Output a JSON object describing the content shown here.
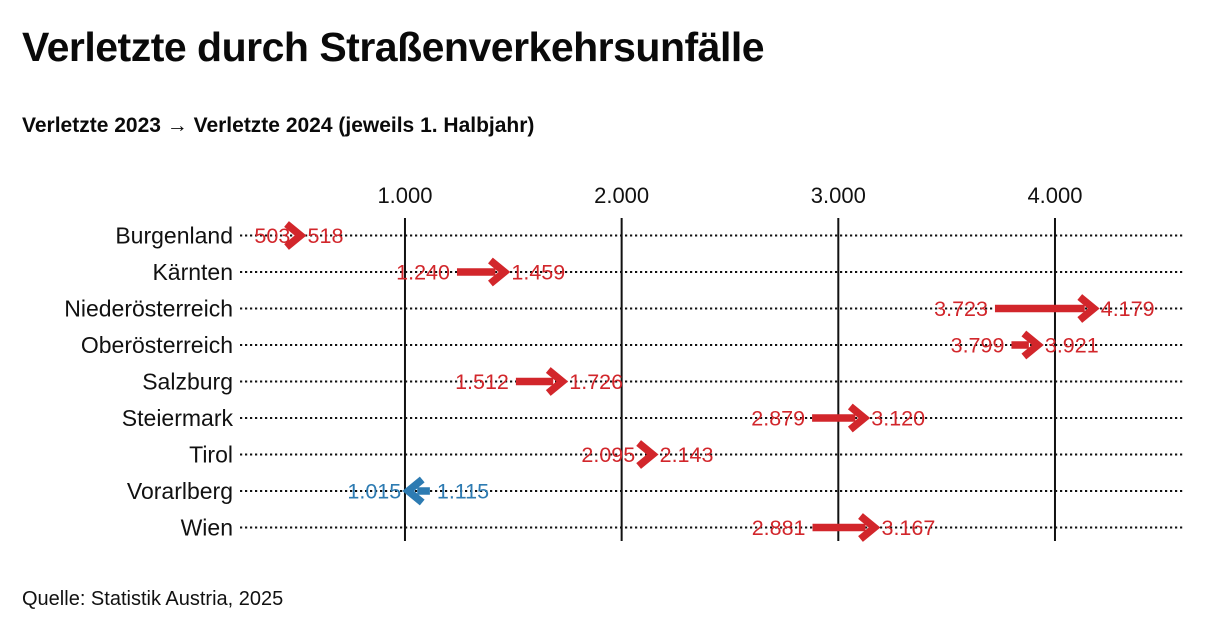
{
  "title": "Verletzte durch Straßenverkehrsunfälle",
  "subtitle": "Verletzte 2023 → Verletzte 2024 (jeweils 1. Halbjahr)",
  "source": "Quelle: Statistik Austria, 2025",
  "colors": {
    "increase": "#d2262b",
    "decrease": "#2d7bb2",
    "text": "#111111",
    "grid": "#111111"
  },
  "chart_data": {
    "type": "arrow",
    "title": "Verletzte durch Straßenverkehrsunfälle",
    "subtitle": "Verletzte 2023 → Verletzte 2024 (jeweils 1. Halbjahr)",
    "categories": [
      "Burgenland",
      "Kärnten",
      "Niederösterreich",
      "Oberösterreich",
      "Salzburg",
      "Steiermark",
      "Tirol",
      "Vorarlberg",
      "Wien"
    ],
    "series": [
      {
        "name": "Verletzte 2023 (1. Halbjahr)",
        "values": [
          503,
          1240,
          3723,
          3799,
          1512,
          2879,
          2095,
          1115,
          2881
        ]
      },
      {
        "name": "Verletzte 2024 (1. Halbjahr)",
        "values": [
          518,
          1459,
          4179,
          3921,
          1726,
          3120,
          2143,
          1015,
          3167
        ]
      }
    ],
    "x_ticks": {
      "values": [
        1000,
        2000,
        3000,
        4000
      ],
      "labels": [
        "1.000",
        "2.000",
        "3.000",
        "4.000"
      ]
    },
    "xlim": [
      0,
      4600
    ],
    "grid": "vertical-solid-lines",
    "row_guides": "horizontal-dotted-lines",
    "legend_position": "none",
    "arrow_color_increase": "#d2262b",
    "arrow_color_decrease": "#2d7bb2",
    "decimal_thousands_separator": "."
  }
}
